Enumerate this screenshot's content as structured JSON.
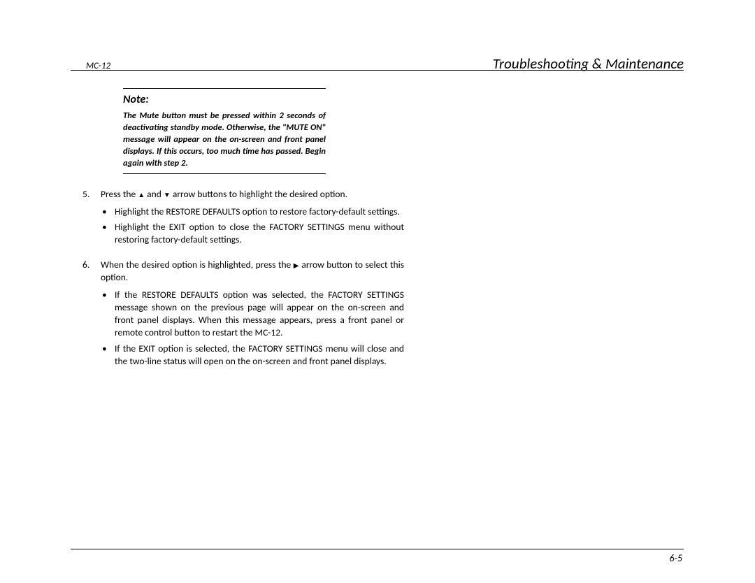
{
  "header": {
    "doc_id": "MC-12",
    "section_title": "Troubleshooting & Maintenance"
  },
  "note": {
    "heading": "Note:",
    "body": "The Mute button must be pressed within 2 seconds of deactivating standby mode. Otherwise, the \"MUTE ON\" message will appear on the on-screen and front panel displays. If this occurs, too much time has passed. Begin again with step 2."
  },
  "steps": {
    "s5": {
      "num": "5.",
      "pre": "Press the ",
      "mid": " and ",
      "post": " arrow buttons to highlight the desired option.",
      "up": "▲",
      "down": "▼",
      "bullets": [
        "Highlight the RESTORE DEFAULTS option to restore factory-default settings.",
        "Highlight the EXIT option to close the FACTORY SETTINGS menu without restoring factory-default settings."
      ]
    },
    "s6": {
      "num": "6.",
      "pre": "When the desired option is highlighted, press the ",
      "right": "▶",
      "post": " arrow button to select this option.",
      "bullets": [
        "If the RESTORE DEFAULTS option was selected, the FACTORY SETTINGS message shown on the previous page will appear on the on-screen and front panel displays. When this message appears, press a front panel or remote control button to restart the MC-12.",
        "If the EXIT option is selected, the FACTORY SETTINGS menu will close and the two-line status will open on the on-screen and front panel displays."
      ]
    }
  },
  "bullet_glyph": "•",
  "page_number": "6-5"
}
